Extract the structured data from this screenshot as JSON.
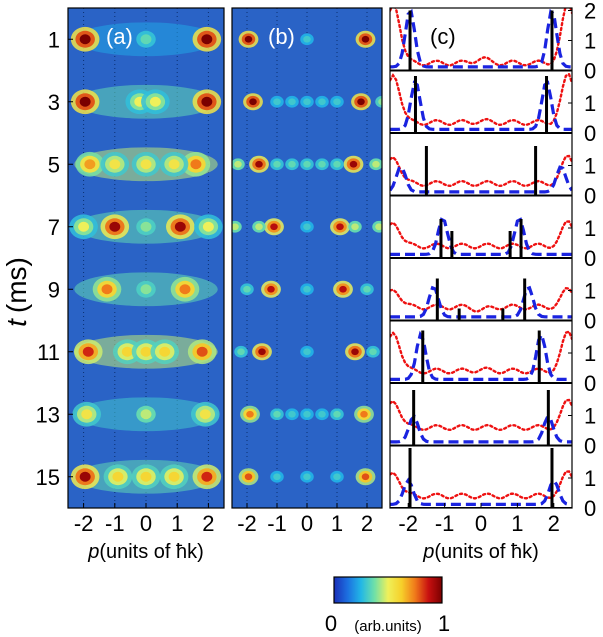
{
  "chart_data": [
    {
      "type": "heatmap",
      "panel_label": "(a)",
      "y_axis_title": "t",
      "y_axis_unit": "(ms)",
      "y_ticks": [
        1,
        3,
        5,
        7,
        9,
        11,
        13,
        15
      ],
      "x_ticks": [
        -2,
        -1,
        0,
        1,
        2
      ],
      "x_axis_title": "p",
      "x_axis_unit": "(units of ħk)",
      "xlim": [
        -2.5,
        2.5
      ],
      "ylim": [
        16,
        0
      ],
      "rows": [
        {
          "t": 1,
          "peaks": [
            [
              -1.95,
              1.0
            ],
            [
              1.95,
              1.0
            ],
            [
              0,
              0.35
            ]
          ],
          "bg": 0.22
        },
        {
          "t": 3,
          "peaks": [
            [
              -1.95,
              1.0
            ],
            [
              1.95,
              1.0
            ],
            [
              -0.2,
              0.5
            ],
            [
              0.3,
              0.5
            ]
          ],
          "bg": 0.35
        },
        {
          "t": 5,
          "peaks": [
            [
              -1.8,
              0.7
            ],
            [
              1.6,
              0.75
            ],
            [
              -1.0,
              0.55
            ],
            [
              0.0,
              0.55
            ],
            [
              0.9,
              0.55
            ]
          ],
          "bg": 0.45
        },
        {
          "t": 7,
          "peaks": [
            [
              -1.0,
              0.95
            ],
            [
              1.1,
              0.95
            ],
            [
              -2.0,
              0.5
            ],
            [
              0.0,
              0.4
            ],
            [
              2.0,
              0.5
            ]
          ],
          "bg": 0.35
        },
        {
          "t": 9,
          "peaks": [
            [
              -1.25,
              0.75
            ],
            [
              1.25,
              0.75
            ],
            [
              0.0,
              0.4
            ]
          ],
          "bg": 0.35
        },
        {
          "t": 11,
          "peaks": [
            [
              -1.85,
              0.85
            ],
            [
              1.8,
              0.8
            ],
            [
              -0.6,
              0.6
            ],
            [
              0.0,
              0.6
            ],
            [
              0.6,
              0.6
            ]
          ],
          "bg": 0.45
        },
        {
          "t": 13,
          "peaks": [
            [
              -1.9,
              0.55
            ],
            [
              1.9,
              0.55
            ],
            [
              0.0,
              0.45
            ]
          ],
          "bg": 0.3
        },
        {
          "t": 15,
          "peaks": [
            [
              -1.95,
              0.95
            ],
            [
              1.95,
              0.85
            ],
            [
              -0.9,
              0.6
            ],
            [
              0.0,
              0.6
            ],
            [
              0.9,
              0.6
            ]
          ],
          "bg": 0.35
        }
      ]
    },
    {
      "type": "heatmap",
      "panel_label": "(b)",
      "x_ticks": [
        -2,
        -1,
        0,
        1,
        2
      ],
      "x_axis_title": "",
      "xlim": [
        -2.5,
        2.5
      ],
      "ylim": [
        16,
        0
      ],
      "rows": [
        {
          "t": 1,
          "peaks": [
            [
              -1.95,
              1.0
            ],
            [
              1.95,
              1.0
            ],
            [
              0.0,
              0.3
            ]
          ]
        },
        {
          "t": 3,
          "peaks": [
            [
              -1.8,
              1.0
            ],
            [
              1.8,
              1.0
            ],
            [
              -1.0,
              0.3
            ],
            [
              -0.5,
              0.3
            ],
            [
              0.0,
              0.3
            ],
            [
              0.5,
              0.3
            ],
            [
              1.0,
              0.3
            ],
            [
              2.5,
              0.4
            ]
          ]
        },
        {
          "t": 5,
          "peaks": [
            [
              -1.6,
              0.95
            ],
            [
              1.55,
              0.95
            ],
            [
              -2.3,
              0.45
            ],
            [
              -1.0,
              0.35
            ],
            [
              -0.5,
              0.35
            ],
            [
              0.0,
              0.35
            ],
            [
              0.5,
              0.35
            ],
            [
              1.0,
              0.35
            ],
            [
              2.3,
              0.45
            ]
          ]
        },
        {
          "t": 7,
          "peaks": [
            [
              -1.1,
              0.9
            ],
            [
              1.1,
              0.9
            ],
            [
              -2.4,
              0.45
            ],
            [
              -1.6,
              0.45
            ],
            [
              1.6,
              0.45
            ],
            [
              2.4,
              0.45
            ],
            [
              0.0,
              0.3
            ]
          ]
        },
        {
          "t": 9,
          "peaks": [
            [
              -1.2,
              0.9
            ],
            [
              1.2,
              0.9
            ],
            [
              -2.0,
              0.35
            ],
            [
              0.0,
              0.3
            ],
            [
              2.0,
              0.35
            ]
          ]
        },
        {
          "t": 11,
          "peaks": [
            [
              -1.5,
              0.95
            ],
            [
              1.6,
              0.95
            ],
            [
              -2.2,
              0.35
            ],
            [
              0.0,
              0.3
            ],
            [
              2.2,
              0.35
            ]
          ]
        },
        {
          "t": 13,
          "peaks": [
            [
              -1.9,
              0.75
            ],
            [
              1.9,
              0.75
            ],
            [
              -1.0,
              0.35
            ],
            [
              -0.5,
              0.3
            ],
            [
              0.0,
              0.3
            ],
            [
              0.5,
              0.3
            ],
            [
              1.0,
              0.35
            ]
          ]
        },
        {
          "t": 15,
          "peaks": [
            [
              -1.95,
              0.8
            ],
            [
              1.95,
              0.8
            ],
            [
              -1.0,
              0.3
            ],
            [
              0.0,
              0.3
            ],
            [
              1.0,
              0.3
            ]
          ]
        }
      ]
    },
    {
      "type": "line",
      "panel_label": "(c)",
      "x_ticks": [
        -2,
        -1,
        0,
        1,
        2
      ],
      "x_axis_title": "p",
      "x_axis_unit": "(units of ħk)",
      "right_tick_labels": [
        "2",
        "1",
        "0"
      ],
      "xlim": [
        -2.5,
        2.5
      ],
      "ylim_per_subpanel": [
        0,
        2
      ],
      "subpanels": [
        {
          "t": 1,
          "bars": [
            [
              -1.95,
              2.0
            ],
            [
              1.95,
              2.0
            ]
          ],
          "blue_peak_x": 1.95,
          "blue_peak_y": 1.9,
          "red_level": 0.25,
          "red_center": 0.4,
          "red_edge": 2.0
        },
        {
          "t": 3,
          "bars": [
            [
              -1.8,
              1.9
            ],
            [
              1.8,
              1.9
            ]
          ],
          "blue_peak_x": 1.8,
          "blue_peak_y": 1.6,
          "red_level": 0.35,
          "red_center": 0.4,
          "red_edge": 1.6
        },
        {
          "t": 5,
          "bars": [
            [
              -1.5,
              1.65
            ],
            [
              1.5,
              1.65
            ]
          ],
          "blue_peak_x": 2.2,
          "blue_peak_y": 0.85,
          "red_level": 0.4,
          "red_center": 0.4,
          "red_edge": 0.9
        },
        {
          "t": 7,
          "bars": [
            [
              -1.1,
              1.3
            ],
            [
              -0.8,
              0.9
            ],
            [
              0.8,
              0.9
            ],
            [
              1.1,
              1.3
            ]
          ],
          "blue_peak_x": 1.05,
          "blue_peak_y": 1.2,
          "red_level": 0.4,
          "red_center": 0.4,
          "red_edge": 0.8
        },
        {
          "t": 9,
          "bars": [
            [
              -1.2,
              1.4
            ],
            [
              1.2,
              1.4
            ],
            [
              -0.6,
              0.4
            ],
            [
              0.6,
              0.4
            ]
          ],
          "blue_peak_x": 1.3,
          "blue_peak_y": 1.0,
          "red_level": 0.45,
          "red_center": 0.35,
          "red_edge": 0.6
        },
        {
          "t": 11,
          "bars": [
            [
              -1.6,
              1.75
            ],
            [
              1.6,
              1.75
            ]
          ],
          "blue_peak_x": 1.65,
          "blue_peak_y": 1.5,
          "red_level": 0.4,
          "red_center": 0.45,
          "red_edge": 1.3
        },
        {
          "t": 13,
          "bars": [
            [
              -1.85,
              1.85
            ],
            [
              1.85,
              1.85
            ]
          ],
          "blue_peak_x": 1.85,
          "blue_peak_y": 0.85,
          "red_level": 0.6,
          "red_center": 0.6,
          "red_edge": 0.9
        },
        {
          "t": 15,
          "bars": [
            [
              -1.95,
              2.0
            ],
            [
              1.95,
              2.0
            ]
          ],
          "blue_peak_x": 2.0,
          "blue_peak_y": 0.8,
          "red_level": 0.4,
          "red_center": 0.4,
          "red_edge": 0.8
        }
      ]
    }
  ],
  "colorbar": {
    "min_label": "0",
    "max_label": "1",
    "unit_label": "(arb.units)",
    "colors": [
      "#1a2fb8",
      "#1c6fe0",
      "#22b7e6",
      "#6fe0a8",
      "#eff05a",
      "#f6d02a",
      "#f07a1a",
      "#c81010",
      "#7a0000"
    ]
  },
  "colors": {
    "heat_bg": "#2a63c6",
    "blue_dashed": "#1a23e0",
    "red_dotted": "#ee1111",
    "black_bar": "#000000"
  }
}
